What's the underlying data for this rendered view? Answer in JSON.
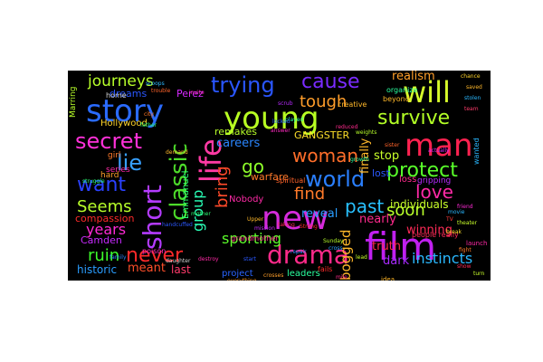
{
  "cloud": {
    "background": "#000000",
    "words": [
      {
        "text": "young",
        "color": "#b8ff22"
      },
      {
        "text": "new",
        "color": "#d52bdb"
      },
      {
        "text": "film",
        "color": "#c020ef"
      },
      {
        "text": "story",
        "color": "#2a6bff"
      },
      {
        "text": "man",
        "color": "#ff2250"
      },
      {
        "text": "life",
        "color": "#ff3aa4"
      },
      {
        "text": "drama",
        "color": "#ff2a8a"
      },
      {
        "text": "will",
        "color": "#d8ff2b"
      },
      {
        "text": "short",
        "color": "#b43bff"
      },
      {
        "text": "classic",
        "color": "#4ddc2a"
      },
      {
        "text": "world",
        "color": "#2a7fff"
      },
      {
        "text": "trying",
        "color": "#2a56ff"
      },
      {
        "text": "cause",
        "color": "#7a2bff"
      },
      {
        "text": "secret",
        "color": "#ff31d9"
      },
      {
        "text": "survive",
        "color": "#b3ff26"
      },
      {
        "text": "protect",
        "color": "#59ff2a"
      },
      {
        "text": "want",
        "color": "#2a41ff"
      },
      {
        "text": "lie",
        "color": "#37a0ff"
      },
      {
        "text": "woman",
        "color": "#ff6e2a"
      },
      {
        "text": "never",
        "color": "#ff2a2a"
      },
      {
        "text": "journeys",
        "color": "#b7ff2a"
      },
      {
        "text": "love",
        "color": "#ff2aa6"
      },
      {
        "text": "past",
        "color": "#28c0ff"
      },
      {
        "text": "tough",
        "color": "#ff9d2a"
      },
      {
        "text": "go",
        "color": "#8fff2a"
      },
      {
        "text": "find",
        "color": "#ff7a2a"
      },
      {
        "text": "bring",
        "color": "#ff4a2a"
      },
      {
        "text": "group",
        "color": "#2affb7"
      },
      {
        "text": "Seems",
        "color": "#b8ff2a"
      },
      {
        "text": "years",
        "color": "#ff2ad6"
      },
      {
        "text": "ruin",
        "color": "#3dff2a"
      },
      {
        "text": "soon",
        "color": "#b8ff2a"
      },
      {
        "text": "sporting",
        "color": "#5cff2a"
      },
      {
        "text": "careers",
        "color": "#2a86ff"
      },
      {
        "text": "reveal",
        "color": "#2a9dff"
      },
      {
        "text": "bogged",
        "color": "#ffb82a"
      },
      {
        "text": "finally",
        "color": "#ffb82a"
      },
      {
        "text": "realism",
        "color": "#ff9f2a"
      },
      {
        "text": "stop",
        "color": "#c9ff2a"
      },
      {
        "text": "lost",
        "color": "#2a58ff"
      },
      {
        "text": "truth",
        "color": "#ff2a4b"
      },
      {
        "text": "winning",
        "color": "#ff2a57"
      },
      {
        "text": "nearly",
        "color": "#ff2a8d"
      },
      {
        "text": "dark",
        "color": "#a82aff"
      },
      {
        "text": "instincts",
        "color": "#2ab8ff"
      },
      {
        "text": "individuals",
        "color": "#c9ff2a"
      },
      {
        "text": "meant",
        "color": "#ff4f2a"
      },
      {
        "text": "historic",
        "color": "#2a9dff"
      },
      {
        "text": "last",
        "color": "#ff3b6b"
      },
      {
        "text": "remakes",
        "color": "#b8ff2a"
      },
      {
        "text": "GANGSTER",
        "color": "#ffe12a"
      },
      {
        "text": "warfare",
        "color": "#ff7a2a"
      },
      {
        "text": "Camden",
        "color": "#c82aff"
      },
      {
        "text": "compassion",
        "color": "#ff2a2a"
      },
      {
        "text": "Emmanuel",
        "color": "#2aff74"
      },
      {
        "text": "Perez",
        "color": "#d62aff"
      },
      {
        "text": "Nobody",
        "color": "#ff2aa7"
      },
      {
        "text": "Hollywood",
        "color": "#ffd42a"
      },
      {
        "text": "dreams",
        "color": "#2a58ff"
      },
      {
        "text": "Marring",
        "color": "#b8ff2a"
      },
      {
        "text": "loss",
        "color": "#ff2a8d"
      },
      {
        "text": "gripping",
        "color": "#b82aff"
      },
      {
        "text": "leaders",
        "color": "#2aff9f"
      },
      {
        "text": "project",
        "color": "#2a64ff"
      },
      {
        "text": "series",
        "color": "#ff2aa6"
      },
      {
        "text": "girl",
        "color": "#ff7a2a"
      },
      {
        "text": "hard",
        "color": "#ff9f2a"
      },
      {
        "text": "home",
        "color": "#d6d6d6"
      },
      {
        "text": "poison",
        "color": "#ff2ac0"
      },
      {
        "text": "spiritual",
        "color": "#ff632a"
      },
      {
        "text": "creative",
        "color": "#ffb82a"
      },
      {
        "text": "people really",
        "color": "#ff2a57"
      },
      {
        "text": "beyond",
        "color": "#ffb82a"
      },
      {
        "text": "organize",
        "color": "#2aff9f"
      },
      {
        "text": "idea",
        "color": "#ffb82a"
      },
      {
        "text": "fails",
        "color": "#ff2a2a"
      },
      {
        "text": "launch",
        "color": "#ff2aa6"
      },
      {
        "text": "wanted",
        "color": "#2ab8ff"
      },
      {
        "text": "grandmother",
        "color": "#ff2a8d"
      },
      {
        "text": "TV",
        "color": "#ff3b3b"
      },
      {
        "text": "movie",
        "color": "#2ab8ff"
      },
      {
        "text": "theater",
        "color": "#c9ff2a"
      },
      {
        "text": "friend",
        "color": "#ff2ad6"
      },
      {
        "text": "father",
        "color": "#2aff74"
      },
      {
        "text": "city",
        "color": "#ff7a2a"
      },
      {
        "text": "family",
        "color": "#2a86ff"
      },
      {
        "text": "daughter",
        "color": "#d6d6d6"
      },
      {
        "text": "everything",
        "color": "#ff9f2a"
      },
      {
        "text": "handcuffed",
        "color": "#2a58ff"
      },
      {
        "text": "Upper",
        "color": "#ffb82a"
      },
      {
        "text": "taking",
        "color": "#ff2a57"
      },
      {
        "text": "played",
        "color": "#2aff9f"
      },
      {
        "text": "invite",
        "color": "#ff2ac0"
      },
      {
        "text": "weights",
        "color": "#b8ff2a"
      },
      {
        "text": "scoops",
        "color": "#2ab8ff"
      },
      {
        "text": "trouble",
        "color": "#ff632a"
      },
      {
        "text": "reduced",
        "color": "#ff2a8d"
      },
      {
        "text": "locked",
        "color": "#2a64ff"
      },
      {
        "text": "mission",
        "color": "#c82aff"
      },
      {
        "text": "break",
        "color": "#ffe12a"
      },
      {
        "text": "struggle",
        "color": "#2aff74"
      },
      {
        "text": "Strong",
        "color": "#ff2a2a"
      },
      {
        "text": "Sunday",
        "color": "#b8ff2a"
      },
      {
        "text": "destroy",
        "color": "#ff2aa6"
      },
      {
        "text": "repair",
        "color": "#2a86ff"
      },
      {
        "text": "fight",
        "color": "#ff7a2a"
      },
      {
        "text": "crosses",
        "color": "#ff9f2a"
      },
      {
        "text": "growth",
        "color": "#2aff9f"
      },
      {
        "text": "actually",
        "color": "#d62aff"
      },
      {
        "text": "saved",
        "color": "#ffb82a"
      },
      {
        "text": "stolen",
        "color": "#2ab8ff"
      },
      {
        "text": "team",
        "color": "#ff3b6b"
      },
      {
        "text": "turn",
        "color": "#c9ff2a"
      },
      {
        "text": "mile",
        "color": "#ff2a8d"
      },
      {
        "text": "start",
        "color": "#2a58ff"
      },
      {
        "text": "chance",
        "color": "#ffd42a"
      },
      {
        "text": "show",
        "color": "#ff2a57"
      },
      {
        "text": "mother",
        "color": "#2aff74"
      },
      {
        "text": "sister",
        "color": "#ff632a"
      },
      {
        "text": "scrub",
        "color": "#b82aff"
      },
      {
        "text": "cross",
        "color": "#2a9dff"
      },
      {
        "text": "demand",
        "color": "#ffb82a"
      },
      {
        "text": "answer",
        "color": "#ff2ac0"
      },
      {
        "text": "lead",
        "color": "#c9ff2a"
      },
      {
        "text": "hope",
        "color": "#2aff9f"
      }
    ]
  }
}
